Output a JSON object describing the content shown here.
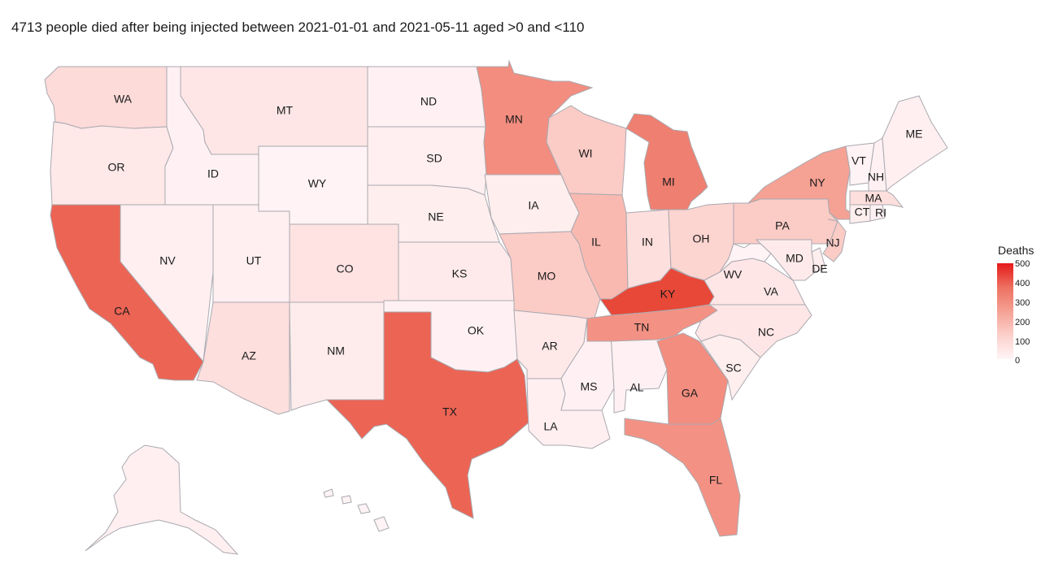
{
  "title": "4713 people died after being injected between 2021-01-01 and 2021-05-11 aged >0 and <110",
  "legend": {
    "title": "Deaths",
    "ticks": [
      "500",
      "400",
      "300",
      "200",
      "100",
      "0"
    ],
    "colors": {
      "low": "#fff5f7",
      "high": "#e51a1a"
    }
  },
  "states": [
    {
      "abbr": "WA",
      "deaths": 70
    },
    {
      "abbr": "OR",
      "deaths": 35
    },
    {
      "abbr": "CA",
      "deaths": 330
    },
    {
      "abbr": "ID",
      "deaths": 10
    },
    {
      "abbr": "NV",
      "deaths": 15
    },
    {
      "abbr": "MT",
      "deaths": 40
    },
    {
      "abbr": "WY",
      "deaths": 5
    },
    {
      "abbr": "UT",
      "deaths": 15
    },
    {
      "abbr": "AZ",
      "deaths": 60
    },
    {
      "abbr": "CO",
      "deaths": 50
    },
    {
      "abbr": "NM",
      "deaths": 25
    },
    {
      "abbr": "ND",
      "deaths": 10
    },
    {
      "abbr": "SD",
      "deaths": 15
    },
    {
      "abbr": "NE",
      "deaths": 20
    },
    {
      "abbr": "KS",
      "deaths": 30
    },
    {
      "abbr": "OK",
      "deaths": 10
    },
    {
      "abbr": "TX",
      "deaths": 330
    },
    {
      "abbr": "MN",
      "deaths": 240
    },
    {
      "abbr": "IA",
      "deaths": 20
    },
    {
      "abbr": "MO",
      "deaths": 110
    },
    {
      "abbr": "AR",
      "deaths": 35
    },
    {
      "abbr": "LA",
      "deaths": 15
    },
    {
      "abbr": "WI",
      "deaths": 110
    },
    {
      "abbr": "IL",
      "deaths": 150
    },
    {
      "abbr": "MS",
      "deaths": 10
    },
    {
      "abbr": "AL",
      "deaths": 10
    },
    {
      "abbr": "MI",
      "deaths": 270
    },
    {
      "abbr": "IN",
      "deaths": 60
    },
    {
      "abbr": "OH",
      "deaths": 90
    },
    {
      "abbr": "KY",
      "deaths": 400
    },
    {
      "abbr": "TN",
      "deaths": 230
    },
    {
      "abbr": "GA",
      "deaths": 240
    },
    {
      "abbr": "FL",
      "deaths": 230
    },
    {
      "abbr": "SC",
      "deaths": 20
    },
    {
      "abbr": "NC",
      "deaths": 40
    },
    {
      "abbr": "VA",
      "deaths": 40
    },
    {
      "abbr": "WV",
      "deaths": 5
    },
    {
      "abbr": "PA",
      "deaths": 110
    },
    {
      "abbr": "NY",
      "deaths": 200
    },
    {
      "abbr": "VT",
      "deaths": 5
    },
    {
      "abbr": "NH",
      "deaths": 10
    },
    {
      "abbr": "ME",
      "deaths": 15
    },
    {
      "abbr": "MA",
      "deaths": 60
    },
    {
      "abbr": "CT",
      "deaths": 20
    },
    {
      "abbr": "RI",
      "deaths": 10
    },
    {
      "abbr": "NJ",
      "deaths": 110
    },
    {
      "abbr": "DE",
      "deaths": 20
    },
    {
      "abbr": "MD",
      "deaths": 30
    },
    {
      "abbr": "AK",
      "deaths": 15
    },
    {
      "abbr": "HI",
      "deaths": 5
    }
  ]
}
